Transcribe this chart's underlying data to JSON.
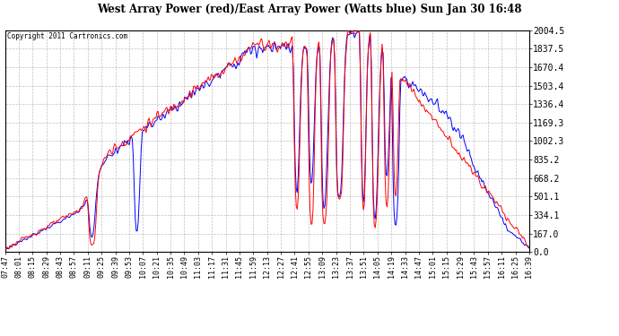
{
  "title": "West Array Power (red)/East Array Power (Watts blue) Sun Jan 30 16:48",
  "copyright": "Copyright 2011 Cartronics.com",
  "background_color": "#ffffff",
  "plot_bg_color": "#ffffff",
  "grid_color": "#b0b0b0",
  "line_color_west": "#ff0000",
  "line_color_east": "#0000ff",
  "y_ticks": [
    0.0,
    167.0,
    334.1,
    501.1,
    668.2,
    835.2,
    1002.3,
    1169.3,
    1336.4,
    1503.4,
    1670.4,
    1837.5,
    2004.5
  ],
  "y_max": 2004.5,
  "y_min": 0.0,
  "x_labels": [
    "07:47",
    "08:01",
    "08:15",
    "08:29",
    "08:43",
    "08:57",
    "09:11",
    "09:25",
    "09:39",
    "09:53",
    "10:07",
    "10:21",
    "10:35",
    "10:49",
    "11:03",
    "11:17",
    "11:31",
    "11:45",
    "11:59",
    "12:13",
    "12:27",
    "12:41",
    "12:55",
    "13:09",
    "13:23",
    "13:37",
    "13:51",
    "14:05",
    "14:19",
    "14:33",
    "14:47",
    "15:01",
    "15:15",
    "15:29",
    "15:43",
    "15:57",
    "16:11",
    "16:25",
    "16:39"
  ]
}
